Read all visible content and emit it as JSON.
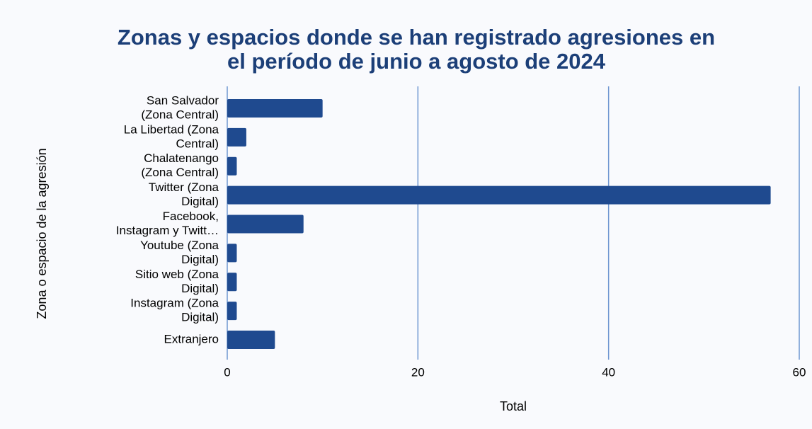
{
  "chart_data": {
    "type": "bar",
    "orientation": "horizontal",
    "title": [
      "Zonas y espacios donde se han registrado agresiones en",
      "el período de junio a agosto de 2024"
    ],
    "xlabel": "Total",
    "ylabel": "Zona o espacio de la agresión",
    "categories": [
      [
        "San Salvador",
        "(Zona Central)"
      ],
      [
        "La Libertad (Zona",
        "Central)"
      ],
      [
        "Chalatenango",
        "(Zona Central)"
      ],
      [
        "Twitter (Zona",
        "Digital)"
      ],
      [
        "Facebook,",
        "Instagram y Twitt…"
      ],
      [
        "Youtube (Zona",
        "Digital)"
      ],
      [
        "Sitio web (Zona",
        "Digital)"
      ],
      [
        "Instagram (Zona",
        "Digital)"
      ],
      [
        "Extranjero"
      ]
    ],
    "values": [
      10,
      2,
      1,
      57,
      8,
      1,
      1,
      1,
      5
    ],
    "color": "#1f4a8f",
    "xlim": [
      0,
      60
    ],
    "xticks": [
      0,
      20,
      40,
      60
    ],
    "grid": true
  }
}
